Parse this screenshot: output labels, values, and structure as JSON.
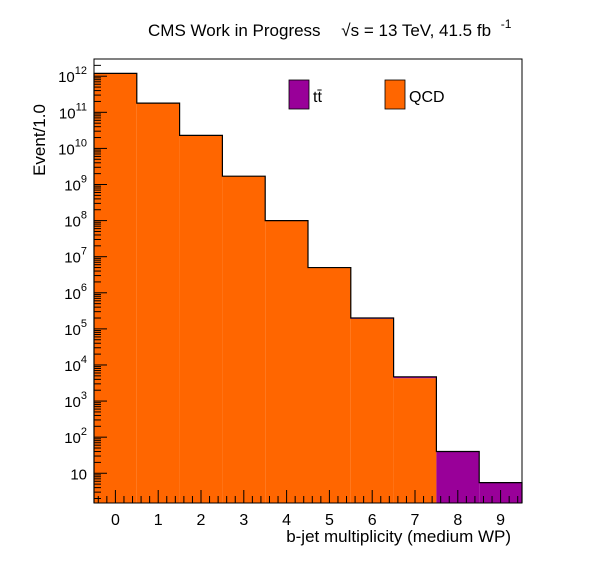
{
  "chart_data": {
    "type": "bar",
    "title_main": "CMS Work in Progress",
    "title_sqrt": "√s",
    "title_energy": " = 13 TeV, 41.5 fb",
    "title_sup": "-1",
    "xlabel": "b-jet multiplicity (medium WP)",
    "ylabel": "Event/1.0",
    "xlim": [
      -0.5,
      9.5
    ],
    "ylim": [
      1.5,
      3000000000000.0
    ],
    "yscale": "log",
    "categories": [
      "0",
      "1",
      "2",
      "3",
      "4",
      "5",
      "6",
      "7",
      "8",
      "9"
    ],
    "x_tick_labels": [
      "0",
      "1",
      "2",
      "3",
      "4",
      "5",
      "6",
      "7",
      "8",
      "9"
    ],
    "y_tick_labels": [
      {
        "value": 10,
        "base": "10",
        "exp": ""
      },
      {
        "value": 100,
        "base": "10",
        "exp": "2"
      },
      {
        "value": 1000,
        "base": "10",
        "exp": "3"
      },
      {
        "value": 10000,
        "base": "10",
        "exp": "4"
      },
      {
        "value": 100000,
        "base": "10",
        "exp": "5"
      },
      {
        "value": 1000000,
        "base": "10",
        "exp": "6"
      },
      {
        "value": 10000000,
        "base": "10",
        "exp": "7"
      },
      {
        "value": 100000000,
        "base": "10",
        "exp": "8"
      },
      {
        "value": 1000000000,
        "base": "10",
        "exp": "9"
      },
      {
        "value": 10000000000,
        "base": "10",
        "exp": "10"
      },
      {
        "value": 100000000000,
        "base": "10",
        "exp": "11"
      },
      {
        "value": 1000000000000,
        "base": "10",
        "exp": "12"
      }
    ],
    "stacked": true,
    "series": [
      {
        "name": "QCD",
        "color": "#ff6600",
        "values": [
          1200000000000.0,
          180000000000.0,
          23000000000.0,
          1700000000.0,
          100000000.0,
          5000000.0,
          190000.0,
          4300.0,
          0,
          0
        ]
      },
      {
        "name": "tt̄",
        "color": "#990099",
        "values": [
          0,
          0,
          0,
          0,
          0,
          0,
          10000.0,
          400.0,
          40,
          5.5
        ]
      }
    ],
    "legend": [
      {
        "name": "tt̄",
        "color": "#990099"
      },
      {
        "name": "QCD",
        "color": "#ff6600"
      }
    ],
    "legend_position": "top-right",
    "grid": false
  }
}
